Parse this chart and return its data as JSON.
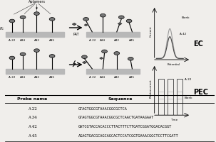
{
  "background_color": "#f0f0f0",
  "title": "",
  "table_header": [
    "Probe name",
    "Sequence"
  ],
  "table_rows": [
    [
      "A 22",
      "GTAGTGGCGTAAACGGCGCTCA"
    ],
    [
      "A 34",
      "GTAGTGGCGTAAACGGCGCTCAACTGATAAGAAT"
    ],
    [
      "A 42",
      "GATCGTACCACACCCTTACTTTCTTGATCGGATGGACACGGT"
    ],
    [
      "A 45",
      "AGAGTGACGCAGCAGCACTCCATCGGTGAAACGGCTCCTTCGATT"
    ]
  ],
  "ec_label": "EC",
  "pec_label": "PEC",
  "blank_label": "Blank",
  "a42_label": "A 42",
  "a22_label": "A 22",
  "current_label": "Current",
  "potential_label": "Potential",
  "photocurrent_label": "Photocurrent",
  "time_label": "Time",
  "pat_label": "PAT",
  "aptamers_label": "Aptamers",
  "fc_label": "Fc",
  "probe_labels_left": [
    "A 22",
    "A34",
    "A42",
    "A45"
  ],
  "probe_labels_right": [
    "A 22",
    "A34",
    "A42",
    "A45"
  ]
}
